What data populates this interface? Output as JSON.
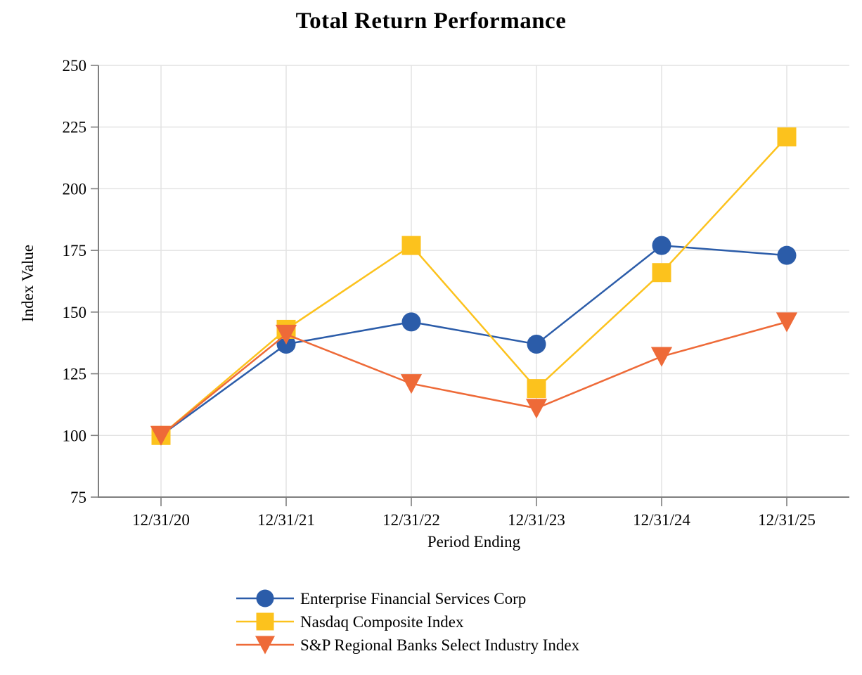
{
  "chart_data": {
    "type": "line",
    "title": "Total Return Performance",
    "xlabel": "Period Ending",
    "ylabel": "Index Value",
    "categories": [
      "12/31/20",
      "12/31/21",
      "12/31/22",
      "12/31/23",
      "12/31/24",
      "12/31/25"
    ],
    "series": [
      {
        "name": "Enterprise Financial Services Corp",
        "marker": "circle",
        "color": "#2B5CA9",
        "values": [
          100,
          137,
          146,
          137,
          177,
          173
        ]
      },
      {
        "name": "Nasdaq Composite Index",
        "marker": "square",
        "color": "#FCC21D",
        "values": [
          100,
          143,
          177,
          119,
          166,
          221
        ]
      },
      {
        "name": "S&P Regional Banks Select Industry Index",
        "marker": "triangle-down",
        "color": "#EE6A38",
        "values": [
          100,
          141,
          121,
          111,
          132,
          146
        ]
      }
    ],
    "ylim": [
      75,
      250
    ],
    "yticks": [
      75,
      100,
      125,
      150,
      175,
      200,
      225,
      250
    ],
    "grid": true,
    "legend_position": "bottom-left"
  },
  "colors": {
    "gridline": "#E2E2E2",
    "axis": "#7F7F7F",
    "text": "#000000",
    "background": "#FFFFFF"
  }
}
